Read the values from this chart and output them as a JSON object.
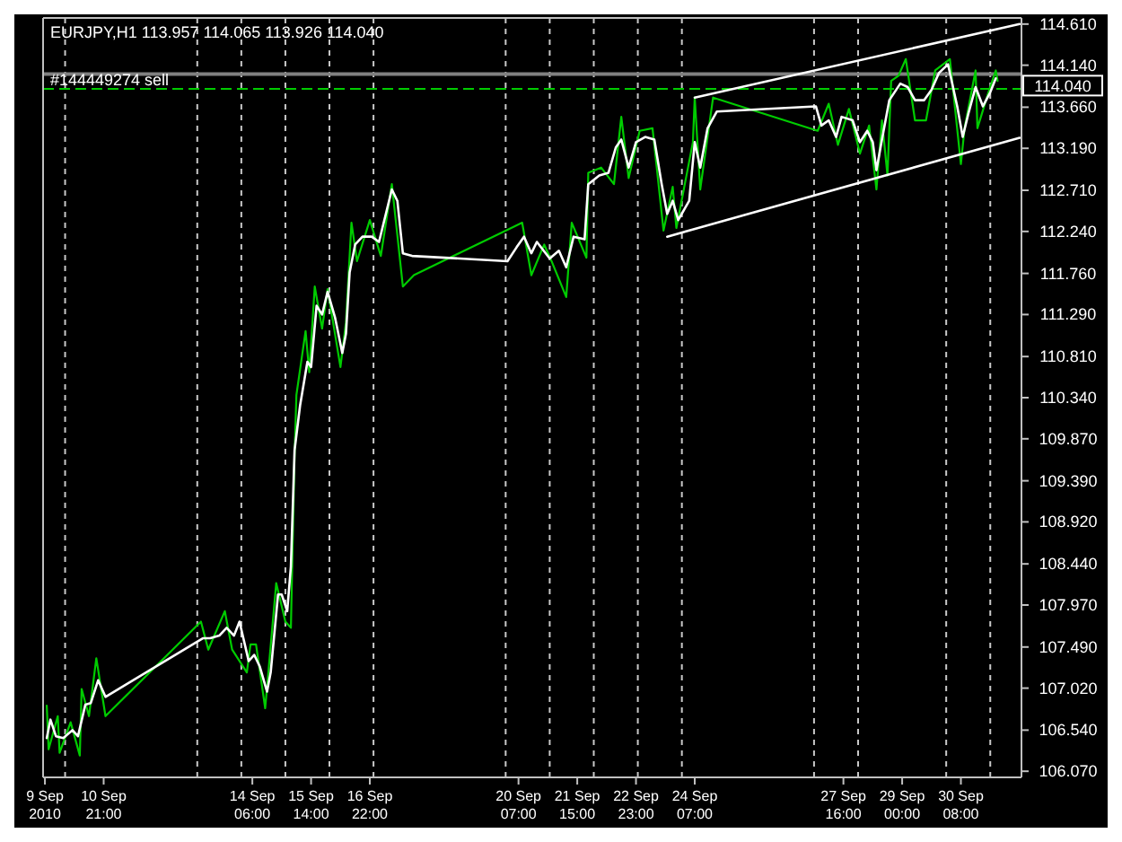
{
  "chart_data": {
    "type": "line",
    "title": "EURJPY,H1  113.957 114.065 113.926 114.040",
    "xlim": [
      "2010-09-09T12:00",
      "2010-10-01T17:00"
    ],
    "ylim": [
      106.0,
      114.68
    ],
    "xticks": [
      {
        "value": "2010-09-09T13:00",
        "label": "9 Sep 2010"
      },
      {
        "value": "2010-09-10T21:00",
        "label": "10 Sep 21:00"
      },
      {
        "value": "2010-09-14T06:00",
        "label": "14 Sep 06:00"
      },
      {
        "value": "2010-09-15T14:00",
        "label": "15 Sep 14:00"
      },
      {
        "value": "2010-09-16T22:00",
        "label": "16 Sep 22:00"
      },
      {
        "value": "2010-09-20T07:00",
        "label": "20 Sep 07:00"
      },
      {
        "value": "2010-09-21T15:00",
        "label": "21 Sep 15:00"
      },
      {
        "value": "2010-09-22T23:00",
        "label": "22 Sep 23:00"
      },
      {
        "value": "2010-09-24T07:00",
        "label": "24 Sep 07:00"
      },
      {
        "value": "2010-09-27T16:00",
        "label": "27 Sep 16:00"
      },
      {
        "value": "2010-09-29T00:00",
        "label": "29 Sep 00:00"
      },
      {
        "value": "2010-09-30T08:00",
        "label": "30 Sep 08:00"
      },
      {
        "value": "2010-09-10",
        "label": null
      },
      {
        "value": "2010-09-13",
        "label": null
      },
      {
        "value": "2010-09-14",
        "label": null
      },
      {
        "value": "2010-09-15",
        "label": null
      },
      {
        "value": "2010-09-16",
        "label": null
      },
      {
        "value": "2010-09-17",
        "label": null
      },
      {
        "value": "2010-09-20",
        "label": null
      },
      {
        "value": "2010-09-21",
        "label": null
      },
      {
        "value": "2010-09-22",
        "label": null
      },
      {
        "value": "2010-09-23",
        "label": null
      },
      {
        "value": "2010-09-24",
        "label": null
      },
      {
        "value": "2010-09-27",
        "label": null
      },
      {
        "value": "2010-09-28",
        "label": null
      },
      {
        "value": "2010-09-30",
        "label": null
      },
      {
        "value": "2010-10-01",
        "label": null
      }
    ],
    "yticks": [
      {
        "value": 114.61,
        "label": "114.610"
      },
      {
        "value": 114.14,
        "label": "114.140"
      },
      {
        "value": 113.66,
        "label": "113.660"
      },
      {
        "value": 113.19,
        "label": "113.190"
      },
      {
        "value": 112.71,
        "label": "112.710"
      },
      {
        "value": 112.24,
        "label": "112.240"
      },
      {
        "value": 111.76,
        "label": "111.760"
      },
      {
        "value": 111.29,
        "label": "111.290"
      },
      {
        "value": 110.81,
        "label": "110.810"
      },
      {
        "value": 110.34,
        "label": "110.340"
      },
      {
        "value": 109.87,
        "label": "109.870"
      },
      {
        "value": 109.39,
        "label": "109.390"
      },
      {
        "value": 108.92,
        "label": "108.920"
      },
      {
        "value": 108.44,
        "label": "108.440"
      },
      {
        "value": 107.97,
        "label": "107.970"
      },
      {
        "value": 107.49,
        "label": "107.490"
      },
      {
        "value": 107.02,
        "label": "107.020"
      },
      {
        "value": 106.54,
        "label": "106.540"
      },
      {
        "value": 106.07,
        "label": "106.070"
      }
    ],
    "grid": "x",
    "series": [
      {
        "color": "#00cc00",
        "x": [
          "2010-09-09T14:00",
          "2010-09-09T15:00",
          "2010-09-09T20:00",
          "2010-09-09T21:00",
          "2010-09-10T03:00",
          "2010-09-10T08:00",
          "2010-09-10T09:00",
          "2010-09-10T13:00",
          "2010-09-10T17:00",
          "2010-09-10T22:00",
          "2010-09-13T02:00",
          "2010-09-13T06:00",
          "2010-09-13T15:00",
          "2010-09-13T19:00",
          "2010-09-14T03:00",
          "2010-09-14T05:00",
          "2010-09-14T08:00",
          "2010-09-14T13:00",
          "2010-09-14T19:00",
          "2010-09-15T00:00",
          "2010-09-15T03:00",
          "2010-09-15T05:00",
          "2010-09-15T06:00",
          "2010-09-15T11:00",
          "2010-09-15T13:00",
          "2010-09-15T16:00",
          "2010-09-15T20:00",
          "2010-09-15T23:00",
          "2010-09-16T06:00",
          "2010-09-16T09:00",
          "2010-09-16T12:00",
          "2010-09-16T15:00",
          "2010-09-16T22:00",
          "2010-09-17T04:00",
          "2010-09-17T10:00",
          "2010-09-17T16:00",
          "2010-09-17T22:00",
          "2010-09-20T09:00",
          "2010-09-20T14:00",
          "2010-09-20T21:00",
          "2010-09-21T01:00",
          "2010-09-21T09:00",
          "2010-09-21T12:00",
          "2010-09-21T20:00",
          "2010-09-21T21:00",
          "2010-09-22T04:00",
          "2010-09-22T11:00",
          "2010-09-22T15:00",
          "2010-09-22T19:00",
          "2010-09-23T01:00",
          "2010-09-23T08:00",
          "2010-09-23T14:00",
          "2010-09-23T19:00",
          "2010-09-23T21:00",
          "2010-09-24T06:00",
          "2010-09-24T07:00",
          "2010-09-24T10:00",
          "2010-09-24T17:00",
          "2010-09-27T02:00",
          "2010-09-27T08:00",
          "2010-09-27T13:00",
          "2010-09-27T19:00",
          "2010-09-28T01:00",
          "2010-09-28T06:00",
          "2010-09-28T10:00",
          "2010-09-28T13:00",
          "2010-09-28T16:00",
          "2010-09-28T18:00",
          "2010-09-28T22:00",
          "2010-09-29T02:00",
          "2010-09-29T07:00",
          "2010-09-29T13:00",
          "2010-09-29T18:00",
          "2010-09-30T02:00",
          "2010-09-30T08:00",
          "2010-09-30T10:00",
          "2010-09-30T16:00",
          "2010-09-30T17:00",
          "2010-09-30T23:00",
          "2010-10-01T03:00",
          "2010-10-01T04:00"
        ],
        "values": [
          106.82,
          106.32,
          106.7,
          106.28,
          106.63,
          106.25,
          107.01,
          106.7,
          107.36,
          106.7,
          107.78,
          107.46,
          107.9,
          107.46,
          107.2,
          107.52,
          107.52,
          106.79,
          108.22,
          107.78,
          107.71,
          109.68,
          110.37,
          111.1,
          110.63,
          111.61,
          111.13,
          111.58,
          110.69,
          111.2,
          112.34,
          111.9,
          112.37,
          111.96,
          112.78,
          111.61,
          111.74,
          112.34,
          111.74,
          112.09,
          111.9,
          111.49,
          112.34,
          111.94,
          112.91,
          112.97,
          112.78,
          113.55,
          112.85,
          113.39,
          113.42,
          112.25,
          112.75,
          112.28,
          113.26,
          113.77,
          112.72,
          113.77,
          113.39,
          113.7,
          113.23,
          113.64,
          113.13,
          113.45,
          112.72,
          113.51,
          112.88,
          113.96,
          114.02,
          114.21,
          113.51,
          113.51,
          114.08,
          114.21,
          113.01,
          113.42,
          114.08,
          113.42,
          113.83,
          114.08,
          113.96
        ]
      },
      {
        "color": "#ffffff",
        "x": [
          "2010-09-09T14:00",
          "2010-09-09T16:00",
          "2010-09-09T19:00",
          "2010-09-09T23:00",
          "2010-09-10T04:00",
          "2010-09-10T07:00",
          "2010-09-10T11:00",
          "2010-09-10T14:00",
          "2010-09-10T18:00",
          "2010-09-10T22:00",
          "2010-09-13T03:00",
          "2010-09-13T07:00",
          "2010-09-13T12:00",
          "2010-09-13T16:00",
          "2010-09-13T20:00",
          "2010-09-13T23:00",
          "2010-09-14T04:00",
          "2010-09-14T07:00",
          "2010-09-14T10:00",
          "2010-09-14T14:00",
          "2010-09-14T16:00",
          "2010-09-14T20:00",
          "2010-09-14T22:00",
          "2010-09-15T01:00",
          "2010-09-15T03:00",
          "2010-09-15T05:00",
          "2010-09-15T08:00",
          "2010-09-15T12:00",
          "2010-09-15T14:00",
          "2010-09-15T17:00",
          "2010-09-15T20:00",
          "2010-09-15T23:00",
          "2010-09-16T03:00",
          "2010-09-16T07:00",
          "2010-09-16T09:00",
          "2010-09-16T11:00",
          "2010-09-16T14:00",
          "2010-09-16T18:00",
          "2010-09-16T23:00",
          "2010-09-17T03:00",
          "2010-09-17T10:00",
          "2010-09-17T13:00",
          "2010-09-17T16:00",
          "2010-09-17T21:00",
          "2010-09-20T01:00",
          "2010-09-20T06:00",
          "2010-09-20T10:00",
          "2010-09-20T14:00",
          "2010-09-20T17:00",
          "2010-09-21T00:00",
          "2010-09-21T05:00",
          "2010-09-21T09:00",
          "2010-09-21T13:00",
          "2010-09-21T19:00",
          "2010-09-21T21:00",
          "2010-09-22T03:00",
          "2010-09-22T08:00",
          "2010-09-22T12:00",
          "2010-09-22T15:00",
          "2010-09-22T19:00",
          "2010-09-22T23:00",
          "2010-09-23T04:00",
          "2010-09-23T09:00",
          "2010-09-23T13:00",
          "2010-09-23T16:00",
          "2010-09-23T19:00",
          "2010-09-23T22:00",
          "2010-09-24T04:00",
          "2010-09-24T07:00",
          "2010-09-24T10:00",
          "2010-09-24T14:00",
          "2010-09-24T19:00",
          "2010-09-27T01:00",
          "2010-09-27T04:00",
          "2010-09-27T08:00",
          "2010-09-27T12:00",
          "2010-09-27T15:00",
          "2010-09-27T21:00",
          "2010-09-28T01:00",
          "2010-09-28T05:00",
          "2010-09-28T08:00",
          "2010-09-28T10:00",
          "2010-09-28T13:00",
          "2010-09-28T17:00",
          "2010-09-28T23:00",
          "2010-09-29T03:00",
          "2010-09-29T07:00",
          "2010-09-29T12:00",
          "2010-09-29T16:00",
          "2010-09-29T20:00",
          "2010-09-30T01:00",
          "2010-09-30T06:00",
          "2010-09-30T09:00",
          "2010-09-30T12:00",
          "2010-09-30T16:00",
          "2010-09-30T20:00",
          "2010-10-01T00:00",
          "2010-10-01T03:00"
        ],
        "values": [
          106.45,
          106.66,
          106.47,
          106.45,
          106.54,
          106.47,
          106.83,
          106.85,
          107.11,
          106.92,
          107.59,
          107.59,
          107.62,
          107.71,
          107.62,
          107.78,
          107.33,
          107.4,
          107.27,
          106.98,
          107.2,
          108.09,
          108.09,
          107.9,
          108.41,
          109.74,
          110.25,
          110.75,
          110.69,
          111.39,
          111.29,
          111.55,
          111.26,
          110.85,
          111.07,
          111.77,
          112.09,
          112.18,
          112.18,
          112.12,
          112.72,
          112.59,
          111.99,
          111.96,
          111.9,
          112.06,
          112.18,
          111.99,
          112.12,
          111.93,
          112.02,
          111.83,
          112.18,
          112.15,
          112.78,
          112.88,
          112.91,
          113.2,
          113.29,
          112.97,
          113.26,
          113.32,
          113.29,
          112.78,
          112.44,
          112.59,
          112.37,
          112.59,
          113.26,
          112.97,
          113.42,
          113.61,
          113.67,
          113.45,
          113.51,
          113.32,
          113.55,
          113.51,
          113.26,
          113.39,
          113.26,
          112.94,
          113.29,
          113.74,
          113.93,
          113.89,
          113.74,
          113.74,
          113.86,
          114.05,
          114.15,
          113.67,
          113.32,
          113.58,
          113.89,
          113.67,
          113.83,
          113.99
        ]
      },
      {
        "color": "#ffffff",
        "x": [
          "2010-09-23T16:00",
          "2010-10-01T16:00"
        ],
        "values": [
          112.18,
          113.31
        ]
      },
      {
        "color": "#ffffff",
        "x": [
          "2010-09-24T07:00",
          "2010-10-01T16:00"
        ],
        "values": [
          113.77,
          114.61
        ]
      }
    ],
    "ref_lines": [
      {
        "axis": "y",
        "value": 114.04,
        "label": "114.040",
        "color": "#808080",
        "line_style": "solid"
      },
      {
        "axis": "y",
        "value": 113.87,
        "label": "#144449274 sell",
        "color": "#00cc00",
        "line_style": "dashed"
      }
    ]
  }
}
